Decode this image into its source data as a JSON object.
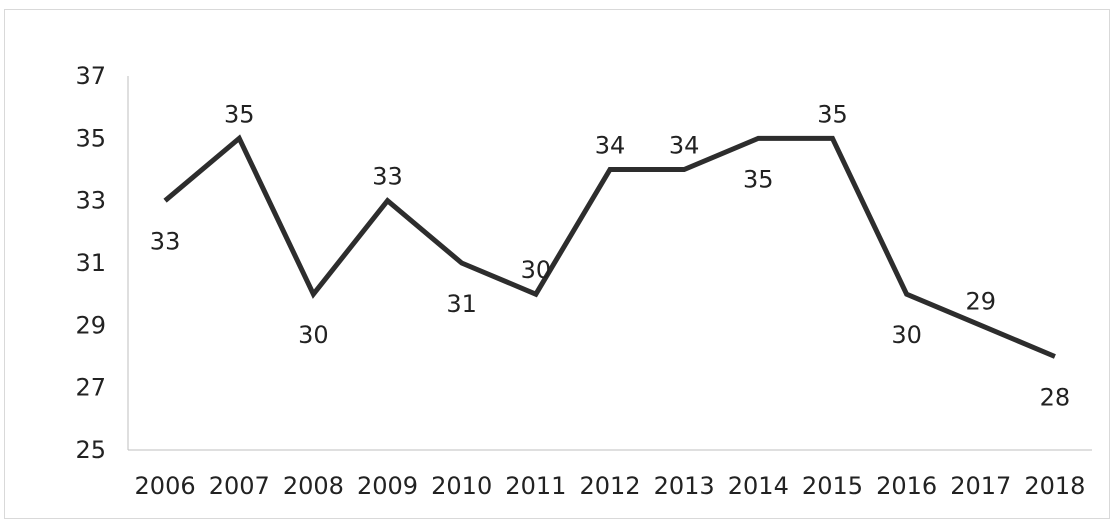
{
  "chart_data": {
    "type": "line",
    "title": "",
    "xlabel": "",
    "ylabel": "",
    "categories": [
      "2006",
      "2007",
      "2008",
      "2009",
      "2010",
      "2011",
      "2012",
      "2013",
      "2014",
      "2015",
      "2016",
      "2017",
      "2018"
    ],
    "series": [
      {
        "values": [
          33,
          35,
          30,
          33,
          31,
          30,
          34,
          34,
          35,
          35,
          30,
          29,
          28
        ],
        "color": "#2d2d2d"
      }
    ],
    "ylim": [
      25,
      37
    ],
    "yticks": [
      "25",
      "27",
      "29",
      "31",
      "33",
      "35",
      "37"
    ],
    "data_labels": [
      "33",
      "35",
      "30",
      "33",
      "31",
      "30",
      "34",
      "34",
      "35",
      "35",
      "30",
      "29",
      "28"
    ],
    "label_positions": [
      "below",
      "above",
      "below",
      "above",
      "below",
      "above",
      "above",
      "above",
      "below",
      "above",
      "below",
      "above",
      "below"
    ],
    "grid": false,
    "legend": "none"
  }
}
